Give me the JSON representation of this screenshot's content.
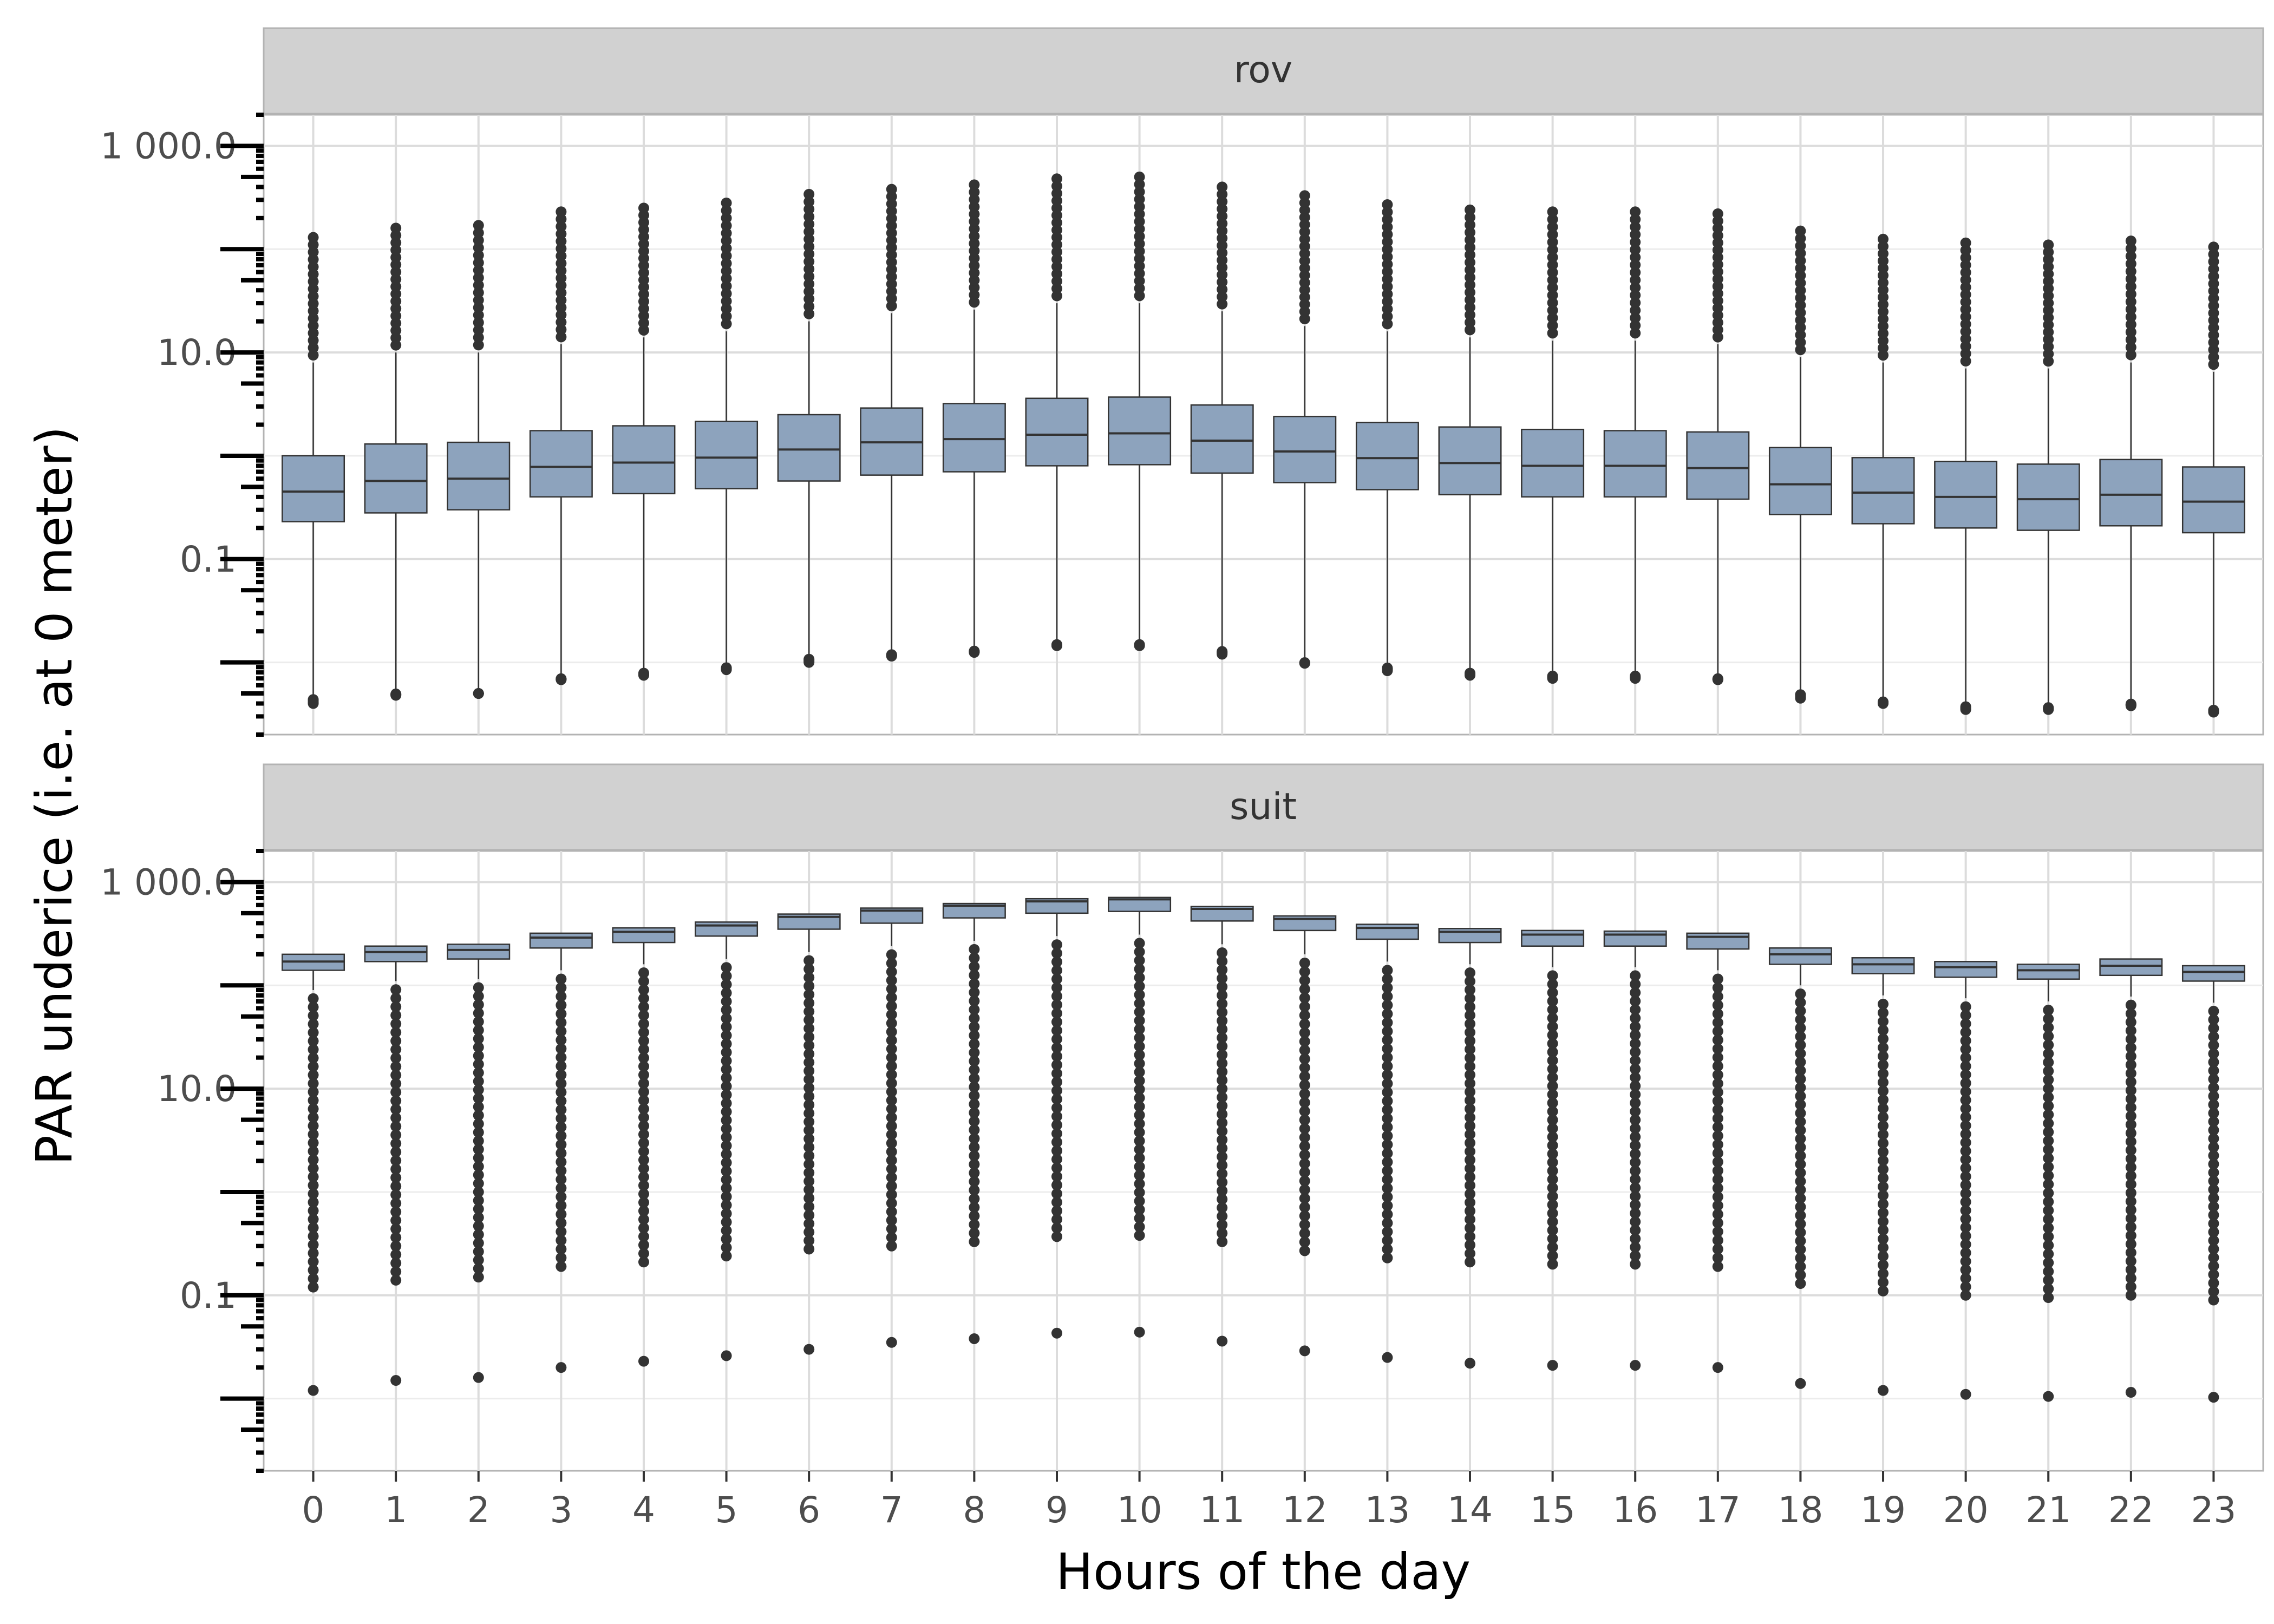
{
  "chart_data": {
    "type": "box",
    "xlabel": "Hours of the day",
    "ylabel": "PAR underice (i.e. at 0 meter)",
    "y_scale": "log10",
    "ylim": [
      0.002,
      2000
    ],
    "y_ticks": [
      {
        "value": 0.1,
        "label": "0.1"
      },
      {
        "value": 10,
        "label": "10.0"
      },
      {
        "value": 1000,
        "label": "1 000.0"
      }
    ],
    "categories": [
      "0",
      "1",
      "2",
      "3",
      "4",
      "5",
      "6",
      "7",
      "8",
      "9",
      "10",
      "11",
      "12",
      "13",
      "14",
      "15",
      "16",
      "17",
      "18",
      "19",
      "20",
      "21",
      "22",
      "23"
    ],
    "box_color": "#8da3bd",
    "grid": true,
    "panels": [
      {
        "name": "rov",
        "boxes": [
          {
            "q1": 0.23,
            "median": 0.45,
            "q3": 1.0,
            "whisker_low": 0.0045,
            "whisker_high": 8.0,
            "out_high_max": 130,
            "out_low_min": 0.004
          },
          {
            "q1": 0.28,
            "median": 0.57,
            "q3": 1.3,
            "whisker_low": 0.005,
            "whisker_high": 10,
            "out_high_max": 160,
            "out_low_min": 0.0048
          },
          {
            "q1": 0.3,
            "median": 0.6,
            "q3": 1.35,
            "whisker_low": 0.005,
            "whisker_high": 10,
            "out_high_max": 170,
            "out_low_min": 0.005
          },
          {
            "q1": 0.4,
            "median": 0.78,
            "q3": 1.75,
            "whisker_low": 0.007,
            "whisker_high": 12,
            "out_high_max": 230,
            "out_low_min": 0.0068
          },
          {
            "q1": 0.43,
            "median": 0.86,
            "q3": 1.95,
            "whisker_low": 0.008,
            "whisker_high": 14,
            "out_high_max": 250,
            "out_low_min": 0.0075
          },
          {
            "q1": 0.48,
            "median": 0.96,
            "q3": 2.15,
            "whisker_low": 0.009,
            "whisker_high": 16,
            "out_high_max": 280,
            "out_low_min": 0.0085
          },
          {
            "q1": 0.57,
            "median": 1.15,
            "q3": 2.5,
            "whisker_low": 0.011,
            "whisker_high": 20,
            "out_high_max": 340,
            "out_low_min": 0.01
          },
          {
            "q1": 0.65,
            "median": 1.35,
            "q3": 2.9,
            "whisker_low": 0.012,
            "whisker_high": 24,
            "out_high_max": 380,
            "out_low_min": 0.0115
          },
          {
            "q1": 0.7,
            "median": 1.45,
            "q3": 3.2,
            "whisker_low": 0.013,
            "whisker_high": 26,
            "out_high_max": 420,
            "out_low_min": 0.0125
          },
          {
            "q1": 0.8,
            "median": 1.6,
            "q3": 3.6,
            "whisker_low": 0.015,
            "whisker_high": 30,
            "out_high_max": 480,
            "out_low_min": 0.0145
          },
          {
            "q1": 0.82,
            "median": 1.65,
            "q3": 3.7,
            "whisker_low": 0.015,
            "whisker_high": 30,
            "out_high_max": 500,
            "out_low_min": 0.0145
          },
          {
            "q1": 0.68,
            "median": 1.4,
            "q3": 3.1,
            "whisker_low": 0.013,
            "whisker_high": 25,
            "out_high_max": 400,
            "out_low_min": 0.012
          },
          {
            "q1": 0.55,
            "median": 1.1,
            "q3": 2.4,
            "whisker_low": 0.01,
            "whisker_high": 18,
            "out_high_max": 330,
            "out_low_min": 0.0098
          },
          {
            "q1": 0.47,
            "median": 0.95,
            "q3": 2.1,
            "whisker_low": 0.009,
            "whisker_high": 16,
            "out_high_max": 270,
            "out_low_min": 0.0083
          },
          {
            "q1": 0.42,
            "median": 0.85,
            "q3": 1.9,
            "whisker_low": 0.008,
            "whisker_high": 14,
            "out_high_max": 240,
            "out_low_min": 0.0075
          },
          {
            "q1": 0.4,
            "median": 0.8,
            "q3": 1.8,
            "whisker_low": 0.0075,
            "whisker_high": 13,
            "out_high_max": 230,
            "out_low_min": 0.007
          },
          {
            "q1": 0.4,
            "median": 0.8,
            "q3": 1.75,
            "whisker_low": 0.0075,
            "whisker_high": 13,
            "out_high_max": 230,
            "out_low_min": 0.007
          },
          {
            "q1": 0.38,
            "median": 0.76,
            "q3": 1.7,
            "whisker_low": 0.007,
            "whisker_high": 12,
            "out_high_max": 220,
            "out_low_min": 0.0068
          },
          {
            "q1": 0.27,
            "median": 0.53,
            "q3": 1.2,
            "whisker_low": 0.005,
            "whisker_high": 9,
            "out_high_max": 150,
            "out_low_min": 0.0045
          },
          {
            "q1": 0.22,
            "median": 0.44,
            "q3": 0.96,
            "whisker_low": 0.0042,
            "whisker_high": 8,
            "out_high_max": 125,
            "out_low_min": 0.004
          },
          {
            "q1": 0.2,
            "median": 0.4,
            "q3": 0.88,
            "whisker_low": 0.0038,
            "whisker_high": 7,
            "out_high_max": 115,
            "out_low_min": 0.0035
          },
          {
            "q1": 0.19,
            "median": 0.38,
            "q3": 0.83,
            "whisker_low": 0.0037,
            "whisker_high": 7,
            "out_high_max": 110,
            "out_low_min": 0.0035
          },
          {
            "q1": 0.21,
            "median": 0.42,
            "q3": 0.92,
            "whisker_low": 0.004,
            "whisker_high": 8,
            "out_high_max": 120,
            "out_low_min": 0.0038
          },
          {
            "q1": 0.18,
            "median": 0.36,
            "q3": 0.78,
            "whisker_low": 0.0035,
            "whisker_high": 6.5,
            "out_high_max": 105,
            "out_low_min": 0.0033
          }
        ]
      },
      {
        "name": "suit",
        "boxes": [
          {
            "q1": 140,
            "median": 170,
            "q3": 200,
            "whisker_low": 90,
            "whisker_high": 200,
            "out_low_min": 0.12,
            "extreme_low": 0.012
          },
          {
            "q1": 170,
            "median": 210,
            "q3": 240,
            "whisker_low": 110,
            "whisker_high": 240,
            "out_low_min": 0.14,
            "extreme_low": 0.015
          },
          {
            "q1": 180,
            "median": 220,
            "q3": 250,
            "whisker_low": 115,
            "whisker_high": 250,
            "out_low_min": 0.15,
            "extreme_low": 0.016
          },
          {
            "q1": 230,
            "median": 290,
            "q3": 320,
            "whisker_low": 140,
            "whisker_high": 320,
            "out_low_min": 0.19,
            "extreme_low": 0.02
          },
          {
            "q1": 260,
            "median": 330,
            "q3": 360,
            "whisker_low": 160,
            "whisker_high": 360,
            "out_low_min": 0.21,
            "extreme_low": 0.023
          },
          {
            "q1": 300,
            "median": 380,
            "q3": 410,
            "whisker_low": 180,
            "whisker_high": 410,
            "out_low_min": 0.24,
            "extreme_low": 0.026
          },
          {
            "q1": 350,
            "median": 460,
            "q3": 490,
            "whisker_low": 210,
            "whisker_high": 490,
            "out_low_min": 0.28,
            "extreme_low": 0.03
          },
          {
            "q1": 400,
            "median": 530,
            "q3": 560,
            "whisker_low": 240,
            "whisker_high": 560,
            "out_low_min": 0.3,
            "extreme_low": 0.035
          },
          {
            "q1": 450,
            "median": 590,
            "q3": 620,
            "whisker_low": 270,
            "whisker_high": 620,
            "out_low_min": 0.33,
            "extreme_low": 0.038
          },
          {
            "q1": 500,
            "median": 650,
            "q3": 690,
            "whisker_low": 300,
            "whisker_high": 690,
            "out_low_min": 0.37,
            "extreme_low": 0.043
          },
          {
            "q1": 520,
            "median": 680,
            "q3": 710,
            "whisker_low": 310,
            "whisker_high": 710,
            "out_low_min": 0.38,
            "extreme_low": 0.044
          },
          {
            "q1": 420,
            "median": 550,
            "q3": 580,
            "whisker_low": 250,
            "whisker_high": 580,
            "out_low_min": 0.33,
            "extreme_low": 0.036
          },
          {
            "q1": 340,
            "median": 440,
            "q3": 470,
            "whisker_low": 200,
            "whisker_high": 470,
            "out_low_min": 0.27,
            "extreme_low": 0.029
          },
          {
            "q1": 280,
            "median": 360,
            "q3": 390,
            "whisker_low": 170,
            "whisker_high": 390,
            "out_low_min": 0.23,
            "extreme_low": 0.025
          },
          {
            "q1": 260,
            "median": 330,
            "q3": 355,
            "whisker_low": 160,
            "whisker_high": 355,
            "out_low_min": 0.21,
            "extreme_low": 0.022
          },
          {
            "q1": 240,
            "median": 310,
            "q3": 340,
            "whisker_low": 150,
            "whisker_high": 340,
            "out_low_min": 0.2,
            "extreme_low": 0.021
          },
          {
            "q1": 240,
            "median": 310,
            "q3": 335,
            "whisker_low": 150,
            "whisker_high": 335,
            "out_low_min": 0.2,
            "extreme_low": 0.021
          },
          {
            "q1": 225,
            "median": 295,
            "q3": 320,
            "whisker_low": 140,
            "whisker_high": 320,
            "out_low_min": 0.19,
            "extreme_low": 0.02
          },
          {
            "q1": 160,
            "median": 200,
            "q3": 230,
            "whisker_low": 100,
            "whisker_high": 230,
            "out_low_min": 0.13,
            "extreme_low": 0.014
          },
          {
            "q1": 130,
            "median": 160,
            "q3": 185,
            "whisker_low": 80,
            "whisker_high": 185,
            "out_low_min": 0.11,
            "extreme_low": 0.012
          },
          {
            "q1": 120,
            "median": 150,
            "q3": 170,
            "whisker_low": 75,
            "whisker_high": 170,
            "out_low_min": 0.1,
            "extreme_low": 0.011
          },
          {
            "q1": 115,
            "median": 140,
            "q3": 160,
            "whisker_low": 70,
            "whisker_high": 160,
            "out_low_min": 0.095,
            "extreme_low": 0.0105
          },
          {
            "q1": 125,
            "median": 155,
            "q3": 180,
            "whisker_low": 78,
            "whisker_high": 180,
            "out_low_min": 0.1,
            "extreme_low": 0.0115
          },
          {
            "q1": 110,
            "median": 135,
            "q3": 155,
            "whisker_low": 68,
            "whisker_high": 155,
            "out_low_min": 0.09,
            "extreme_low": 0.0103
          }
        ]
      }
    ]
  }
}
